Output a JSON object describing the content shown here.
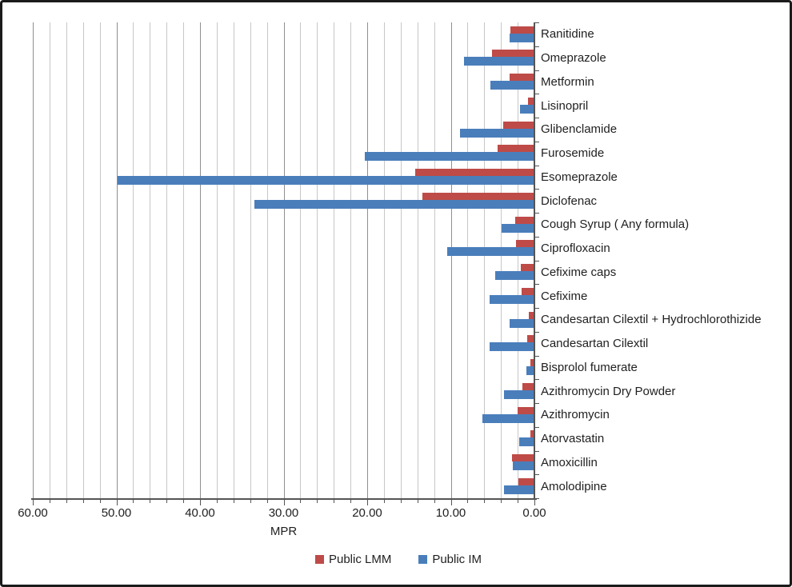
{
  "chart_data": {
    "type": "bar",
    "orientation": "horizontal",
    "title": "",
    "value_axis": {
      "label": "MPR",
      "min": 0,
      "max": 60,
      "reversed": true,
      "tick_values": [
        60,
        50,
        40,
        30,
        20,
        10,
        0
      ],
      "tick_labels": [
        "60.00",
        "50.00",
        "40.00",
        "30.00",
        "20.00",
        "10.00",
        "0.00"
      ],
      "minor_gridline_step": 2,
      "major_gridline_step": 10,
      "grid": true
    },
    "categories": [
      "Ranitidine",
      "Omeprazole",
      "Metformin",
      "Lisinopril",
      "Glibenclamide",
      "Furosemide",
      "Esomeprazole",
      "Diclofenac",
      "Cough Syrup ( Any formula)",
      "Ciprofloxacin",
      "Cefixime caps",
      "Cefixime",
      "Candesartan Cilextil + Hydrochlorothizide",
      "Candesartan Cilextil",
      "Bisprolol fumerate",
      "Azithromycin Dry Powder",
      "Azithromycin",
      "Atorvastatin",
      "Amoxicillin",
      "Amolodipine"
    ],
    "series": [
      {
        "name": "Public LMM",
        "color": "#BE4B48",
        "values": [
          2.9,
          5.1,
          3.0,
          0.8,
          3.7,
          4.4,
          14.3,
          13.4,
          2.3,
          2.2,
          1.6,
          1.5,
          0.7,
          0.9,
          0.5,
          1.4,
          2.0,
          0.5,
          2.7,
          1.9
        ]
      },
      {
        "name": "Public IM",
        "color": "#4A7EBB",
        "values": [
          3.0,
          8.4,
          5.3,
          1.7,
          8.9,
          20.3,
          49.9,
          33.5,
          3.9,
          10.4,
          4.7,
          5.4,
          3.0,
          5.4,
          1.0,
          3.6,
          6.2,
          1.8,
          2.6,
          3.6
        ]
      }
    ],
    "legend_position": "bottom"
  },
  "colors": {
    "minor_gridline": "#c7c7c7",
    "major_gridline": "#8f8f8f",
    "axis_line": "#555555",
    "text": "#1f1f1f",
    "frame_border": "#1b1b1b",
    "background": "#ffffff"
  }
}
